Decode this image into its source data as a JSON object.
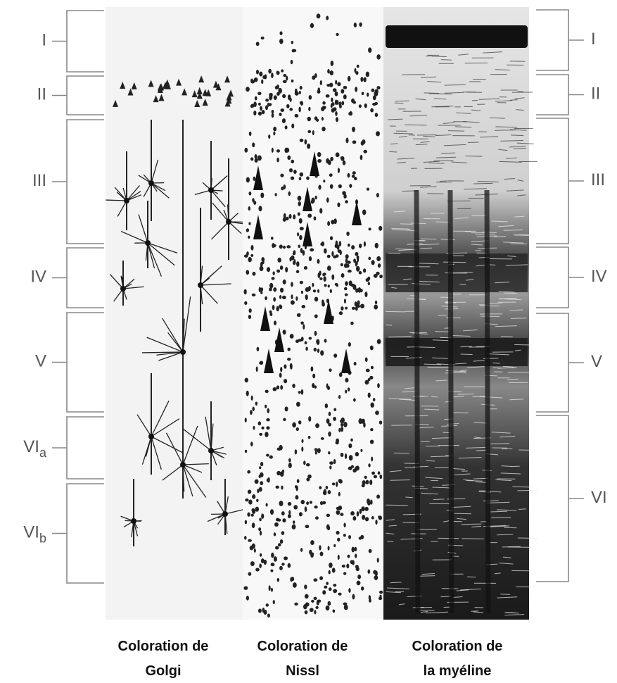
{
  "left_layers": [
    {
      "main": "I"
    },
    {
      "main": "II"
    },
    {
      "main": "III"
    },
    {
      "main": "IV"
    },
    {
      "main": "V"
    },
    {
      "main": "VI",
      "sub": "a"
    },
    {
      "main": "VI",
      "sub": "b"
    }
  ],
  "right_layers": [
    {
      "main": "I"
    },
    {
      "main": "II"
    },
    {
      "main": "III"
    },
    {
      "main": "IV"
    },
    {
      "main": "V"
    },
    {
      "main": "VI"
    }
  ],
  "captions": [
    {
      "lines": [
        "Coloration de",
        "Golgi"
      ]
    },
    {
      "lines": [
        "Coloration de",
        "Nissl"
      ]
    },
    {
      "lines": [
        "Coloration de",
        "la myéline"
      ]
    }
  ]
}
